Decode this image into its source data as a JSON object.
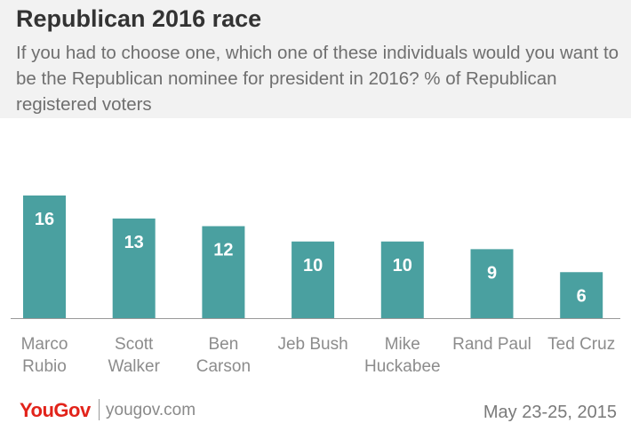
{
  "header": {
    "title": "Republican 2016 race",
    "subtitle": "If you had to choose one, which one of these individuals would you want to be the Republican nominee for president in 2016? % of Republican registered voters"
  },
  "chart_data": {
    "type": "bar",
    "categories": [
      [
        "Marco",
        "Rubio"
      ],
      [
        "Scott",
        "Walker"
      ],
      [
        "Ben",
        "Carson"
      ],
      [
        "Jeb Bush"
      ],
      [
        "Mike",
        "Huckabee"
      ],
      [
        "Rand Paul"
      ],
      [
        "Ted Cruz"
      ]
    ],
    "values": [
      16,
      13,
      12,
      10,
      10,
      9,
      6
    ],
    "ylim": [
      0,
      16
    ],
    "grid": false,
    "bar_color": "#4aa0a0",
    "label_color": "#ffffff",
    "axis_color": "#999999",
    "category_color": "#8c8c8c"
  },
  "footer": {
    "logo": "YouGov",
    "url": "yougov.com",
    "date": "May 23-25, 2015",
    "logo_color": "#e2231a"
  }
}
